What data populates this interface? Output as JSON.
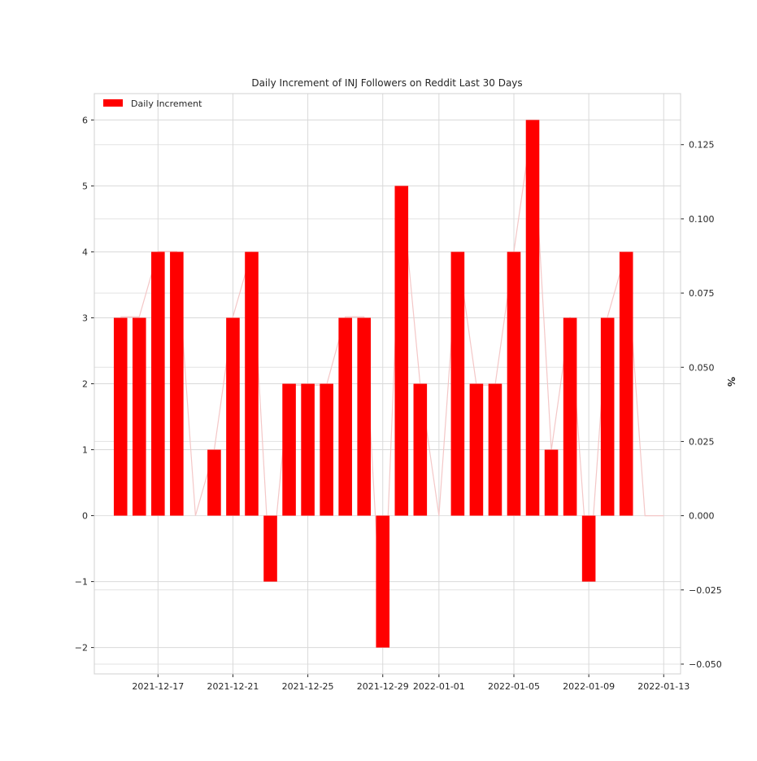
{
  "chart_data": {
    "type": "bar",
    "title": "Daily Increment of INJ Followers on Reddit Last 30 Days",
    "xlabel": "",
    "ylabel": "",
    "y2label": "%",
    "legend": {
      "position": "top-left",
      "entries": [
        "Daily Increment"
      ]
    },
    "grid": true,
    "x": [
      "2021-12-15",
      "2021-12-16",
      "2021-12-17",
      "2021-12-18",
      "2021-12-19",
      "2021-12-20",
      "2021-12-21",
      "2021-12-22",
      "2021-12-23",
      "2021-12-24",
      "2021-12-25",
      "2021-12-26",
      "2021-12-27",
      "2021-12-28",
      "2021-12-29",
      "2021-12-30",
      "2021-12-31",
      "2022-01-01",
      "2022-01-02",
      "2022-01-03",
      "2022-01-04",
      "2022-01-05",
      "2022-01-06",
      "2022-01-07",
      "2022-01-08",
      "2022-01-09",
      "2022-01-10",
      "2022-01-11",
      "2022-01-12",
      "2022-01-13"
    ],
    "series": [
      {
        "name": "Daily Increment",
        "color": "#ff0000",
        "axis": "left",
        "values": [
          3,
          3,
          4,
          4,
          0,
          1,
          3,
          4,
          -1,
          2,
          2,
          2,
          3,
          3,
          -2,
          5,
          2,
          0,
          4,
          2,
          2,
          4,
          6,
          1,
          3,
          -1,
          3,
          4,
          0,
          0
        ]
      },
      {
        "color": "#f4c7c7",
        "axis": "right",
        "style": "line",
        "values": [
          0.067,
          0.067,
          0.089,
          0.089,
          0,
          0.022,
          0.067,
          0.089,
          -0.022,
          0.044,
          0.044,
          0.044,
          0.067,
          0.067,
          -0.044,
          0.111,
          0.044,
          0,
          0.089,
          0.044,
          0.044,
          0.089,
          0.133,
          0.022,
          0.067,
          -0.022,
          0.067,
          0.089,
          0,
          0
        ]
      }
    ],
    "ylim": [
      -2.4,
      6.4
    ],
    "y2lim": [
      -0.0533,
      0.1422
    ],
    "yticks": [
      "−2",
      "−1",
      "0",
      "1",
      "2",
      "3",
      "4",
      "5",
      "6"
    ],
    "y2ticks": [
      "−0.050",
      "−0.025",
      "0.000",
      "0.025",
      "0.050",
      "0.075",
      "0.100",
      "0.125"
    ],
    "y2tick_values": [
      -0.05,
      -0.025,
      0,
      0.025,
      0.05,
      0.075,
      0.1,
      0.125
    ],
    "xticks": [
      {
        "date": "2021-12-17",
        "label": "2021-12-17"
      },
      {
        "date": "2021-12-21",
        "label": "2021-12-21"
      },
      {
        "date": "2021-12-25",
        "label": "2021-12-25"
      },
      {
        "date": "2021-12-29",
        "label": "2021-12-29"
      },
      {
        "date": "2022-01-01",
        "label": "2022-01-01"
      },
      {
        "date": "2022-01-05",
        "label": "2022-01-05"
      },
      {
        "date": "2022-01-09",
        "label": "2022-01-09"
      },
      {
        "date": "2022-01-13",
        "label": "2022-01-13"
      }
    ]
  }
}
